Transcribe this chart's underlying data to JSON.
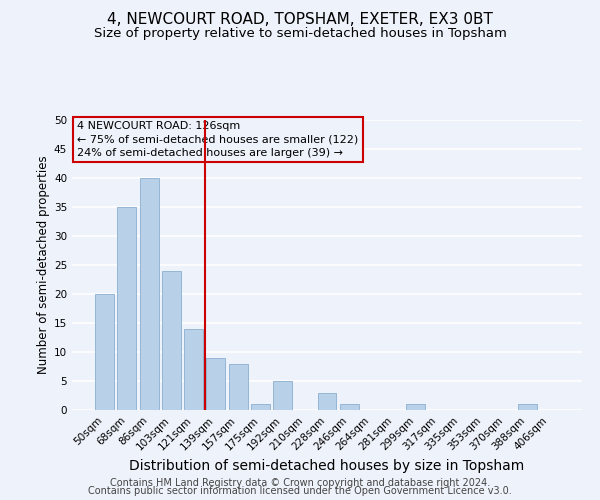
{
  "title": "4, NEWCOURT ROAD, TOPSHAM, EXETER, EX3 0BT",
  "subtitle": "Size of property relative to semi-detached houses in Topsham",
  "xlabel": "Distribution of semi-detached houses by size in Topsham",
  "ylabel": "Number of semi-detached properties",
  "bins": [
    "50sqm",
    "68sqm",
    "86sqm",
    "103sqm",
    "121sqm",
    "139sqm",
    "157sqm",
    "175sqm",
    "192sqm",
    "210sqm",
    "228sqm",
    "246sqm",
    "264sqm",
    "281sqm",
    "299sqm",
    "317sqm",
    "335sqm",
    "353sqm",
    "370sqm",
    "388sqm",
    "406sqm"
  ],
  "values": [
    20,
    35,
    40,
    24,
    14,
    9,
    8,
    1,
    5,
    0,
    3,
    1,
    0,
    0,
    1,
    0,
    0,
    0,
    0,
    1,
    0
  ],
  "bar_color": "#b8d0e8",
  "bar_edge_color": "#8ab0d0",
  "vline_x_index": 4.5,
  "vline_color": "#cc0000",
  "annotation_line1": "4 NEWCOURT ROAD: 126sqm",
  "annotation_line2": "← 75% of semi-detached houses are smaller (122)",
  "annotation_line3": "24% of semi-detached houses are larger (39) →",
  "annotation_box_color": "#cc0000",
  "ylim": [
    0,
    50
  ],
  "yticks": [
    0,
    5,
    10,
    15,
    20,
    25,
    30,
    35,
    40,
    45,
    50
  ],
  "footer1": "Contains HM Land Registry data © Crown copyright and database right 2024.",
  "footer2": "Contains public sector information licensed under the Open Government Licence v3.0.",
  "background_color": "#eef2fa",
  "grid_color": "#ffffff",
  "title_fontsize": 11,
  "subtitle_fontsize": 9.5,
  "xlabel_fontsize": 10,
  "ylabel_fontsize": 8.5,
  "annotation_fontsize": 8,
  "tick_fontsize": 7.5,
  "footer_fontsize": 7
}
